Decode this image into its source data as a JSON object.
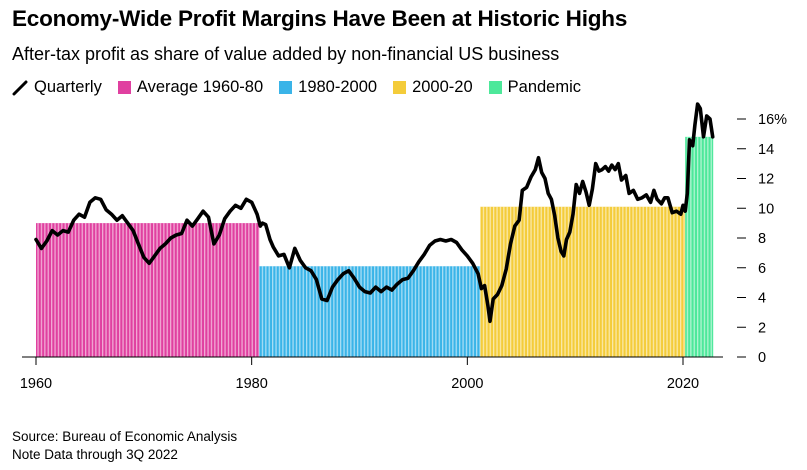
{
  "title": "Economy-Wide Profit Margins Have Been at Historic Highs",
  "subtitle": "After-tax profit as share of value added by non-financial US business",
  "legend": [
    {
      "label": "Quarterly",
      "kind": "line",
      "color": "#000000"
    },
    {
      "label": "Average 1960-80",
      "kind": "box",
      "color": "#e040a0"
    },
    {
      "label": "1980-2000",
      "kind": "box",
      "color": "#3ab4e8"
    },
    {
      "label": "2000-20",
      "kind": "box",
      "color": "#f4cc3a"
    },
    {
      "label": "Pandemic",
      "kind": "box",
      "color": "#4de89a"
    }
  ],
  "source": "Source: Bureau of Economic Analysis",
  "note": "Note Data through 3Q 2022",
  "chart_data": {
    "type": "line",
    "x_ticks": [
      "1960",
      "1980",
      "2000",
      "2020"
    ],
    "y_ticks": [
      "0",
      "2",
      "4",
      "6",
      "8",
      "10",
      "12",
      "14",
      "16%"
    ],
    "xlim": [
      1959,
      2024
    ],
    "ylim": [
      0,
      16.5
    ],
    "y_axis_side": "right",
    "averages": [
      {
        "name": "Average 1960-80",
        "start": 1960,
        "end": 1980.7,
        "value": 9.0,
        "color": "#e040a0"
      },
      {
        "name": "1980-2000",
        "start": 1980.7,
        "end": 2001.2,
        "value": 6.1,
        "color": "#3ab4e8"
      },
      {
        "name": "2000-20",
        "start": 2001.2,
        "end": 2020.2,
        "value": 10.1,
        "color": "#f4cc3a"
      },
      {
        "name": "Pandemic",
        "start": 2020.2,
        "end": 2022.8,
        "value": 14.8,
        "color": "#4de89a"
      }
    ],
    "series": [
      {
        "name": "Quarterly",
        "color": "#000000",
        "points": [
          [
            1960,
            7.9
          ],
          [
            1960.5,
            7.3
          ],
          [
            1961,
            7.8
          ],
          [
            1961.5,
            8.5
          ],
          [
            1962,
            8.2
          ],
          [
            1962.5,
            8.5
          ],
          [
            1963,
            8.4
          ],
          [
            1963.5,
            9.2
          ],
          [
            1964,
            9.6
          ],
          [
            1964.5,
            9.4
          ],
          [
            1965,
            10.4
          ],
          [
            1965.5,
            10.7
          ],
          [
            1966,
            10.6
          ],
          [
            1966.5,
            9.9
          ],
          [
            1967,
            9.6
          ],
          [
            1967.5,
            9.2
          ],
          [
            1968,
            9.5
          ],
          [
            1968.5,
            9.0
          ],
          [
            1969,
            8.5
          ],
          [
            1969.5,
            7.6
          ],
          [
            1970,
            6.7
          ],
          [
            1970.5,
            6.3
          ],
          [
            1971,
            6.8
          ],
          [
            1971.5,
            7.3
          ],
          [
            1972,
            7.6
          ],
          [
            1972.5,
            8.0
          ],
          [
            1973,
            8.2
          ],
          [
            1973.5,
            8.3
          ],
          [
            1974,
            9.2
          ],
          [
            1974.5,
            8.8
          ],
          [
            1975,
            9.3
          ],
          [
            1975.5,
            9.8
          ],
          [
            1976,
            9.4
          ],
          [
            1976.5,
            7.6
          ],
          [
            1977,
            8.2
          ],
          [
            1977.5,
            9.3
          ],
          [
            1978,
            9.8
          ],
          [
            1978.5,
            10.2
          ],
          [
            1979,
            10.0
          ],
          [
            1979.5,
            10.6
          ],
          [
            1980,
            10.4
          ],
          [
            1980.5,
            9.6
          ],
          [
            1980.8,
            8.8
          ],
          [
            1981,
            9.0
          ],
          [
            1981.3,
            8.9
          ],
          [
            1981.7,
            7.9
          ],
          [
            1982,
            7.4
          ],
          [
            1982.5,
            6.8
          ],
          [
            1983,
            6.9
          ],
          [
            1983.5,
            6.0
          ],
          [
            1984,
            7.3
          ],
          [
            1984.5,
            6.5
          ],
          [
            1985,
            6.0
          ],
          [
            1985.5,
            5.8
          ],
          [
            1986,
            5.2
          ],
          [
            1986.5,
            3.9
          ],
          [
            1987,
            3.8
          ],
          [
            1987.5,
            4.7
          ],
          [
            1988,
            5.2
          ],
          [
            1988.5,
            5.6
          ],
          [
            1989,
            5.8
          ],
          [
            1989.5,
            5.3
          ],
          [
            1990,
            4.7
          ],
          [
            1990.5,
            4.4
          ],
          [
            1991,
            4.3
          ],
          [
            1991.5,
            4.7
          ],
          [
            1992,
            4.4
          ],
          [
            1992.5,
            4.7
          ],
          [
            1993,
            4.5
          ],
          [
            1993.5,
            4.9
          ],
          [
            1994,
            5.2
          ],
          [
            1994.5,
            5.3
          ],
          [
            1995,
            5.8
          ],
          [
            1995.5,
            6.4
          ],
          [
            1996,
            6.9
          ],
          [
            1996.5,
            7.5
          ],
          [
            1997,
            7.8
          ],
          [
            1997.5,
            7.9
          ],
          [
            1998,
            7.8
          ],
          [
            1998.5,
            7.9
          ],
          [
            1999,
            7.7
          ],
          [
            1999.5,
            7.2
          ],
          [
            2000,
            6.8
          ],
          [
            2000.5,
            6.3
          ],
          [
            2001,
            5.6
          ],
          [
            2001.3,
            4.6
          ],
          [
            2001.6,
            4.8
          ],
          [
            2001.9,
            3.5
          ],
          [
            2002.1,
            2.4
          ],
          [
            2002.4,
            3.9
          ],
          [
            2002.8,
            4.2
          ],
          [
            2003.2,
            4.8
          ],
          [
            2003.6,
            5.9
          ],
          [
            2004,
            7.6
          ],
          [
            2004.4,
            8.8
          ],
          [
            2004.8,
            9.2
          ],
          [
            2005.1,
            11.2
          ],
          [
            2005.5,
            11.4
          ],
          [
            2005.9,
            12.1
          ],
          [
            2006.3,
            12.6
          ],
          [
            2006.6,
            13.4
          ],
          [
            2006.9,
            12.4
          ],
          [
            2007.2,
            12.0
          ],
          [
            2007.5,
            11.0
          ],
          [
            2007.8,
            10.6
          ],
          [
            2008.1,
            9.5
          ],
          [
            2008.4,
            8.0
          ],
          [
            2008.7,
            7.1
          ],
          [
            2008.95,
            6.8
          ],
          [
            2009.2,
            7.9
          ],
          [
            2009.5,
            8.4
          ],
          [
            2009.8,
            9.6
          ],
          [
            2010.1,
            11.6
          ],
          [
            2010.4,
            11.0
          ],
          [
            2010.7,
            11.8
          ],
          [
            2011.0,
            11.1
          ],
          [
            2011.3,
            10.2
          ],
          [
            2011.6,
            11.3
          ],
          [
            2011.9,
            13.0
          ],
          [
            2012.2,
            12.5
          ],
          [
            2012.5,
            12.6
          ],
          [
            2012.8,
            12.8
          ],
          [
            2013.1,
            12.5
          ],
          [
            2013.4,
            12.9
          ],
          [
            2013.7,
            12.6
          ],
          [
            2014.0,
            13.0
          ],
          [
            2014.3,
            11.9
          ],
          [
            2014.7,
            12.2
          ],
          [
            2015.0,
            11.0
          ],
          [
            2015.4,
            11.2
          ],
          [
            2015.8,
            10.6
          ],
          [
            2016.2,
            10.7
          ],
          [
            2016.6,
            10.9
          ],
          [
            2017.0,
            10.4
          ],
          [
            2017.3,
            11.2
          ],
          [
            2017.6,
            10.6
          ],
          [
            2018.0,
            10.3
          ],
          [
            2018.3,
            10.7
          ],
          [
            2018.6,
            10.7
          ],
          [
            2019.0,
            9.7
          ],
          [
            2019.4,
            9.8
          ],
          [
            2019.8,
            9.6
          ],
          [
            2020.0,
            10.2
          ],
          [
            2020.2,
            9.8
          ],
          [
            2020.4,
            11.0
          ],
          [
            2020.6,
            14.6
          ],
          [
            2020.9,
            14.2
          ],
          [
            2021.1,
            15.6
          ],
          [
            2021.35,
            17.0
          ],
          [
            2021.6,
            16.7
          ],
          [
            2021.9,
            14.8
          ],
          [
            2022.2,
            16.2
          ],
          [
            2022.5,
            16.0
          ],
          [
            2022.75,
            14.8
          ]
        ]
      }
    ]
  }
}
